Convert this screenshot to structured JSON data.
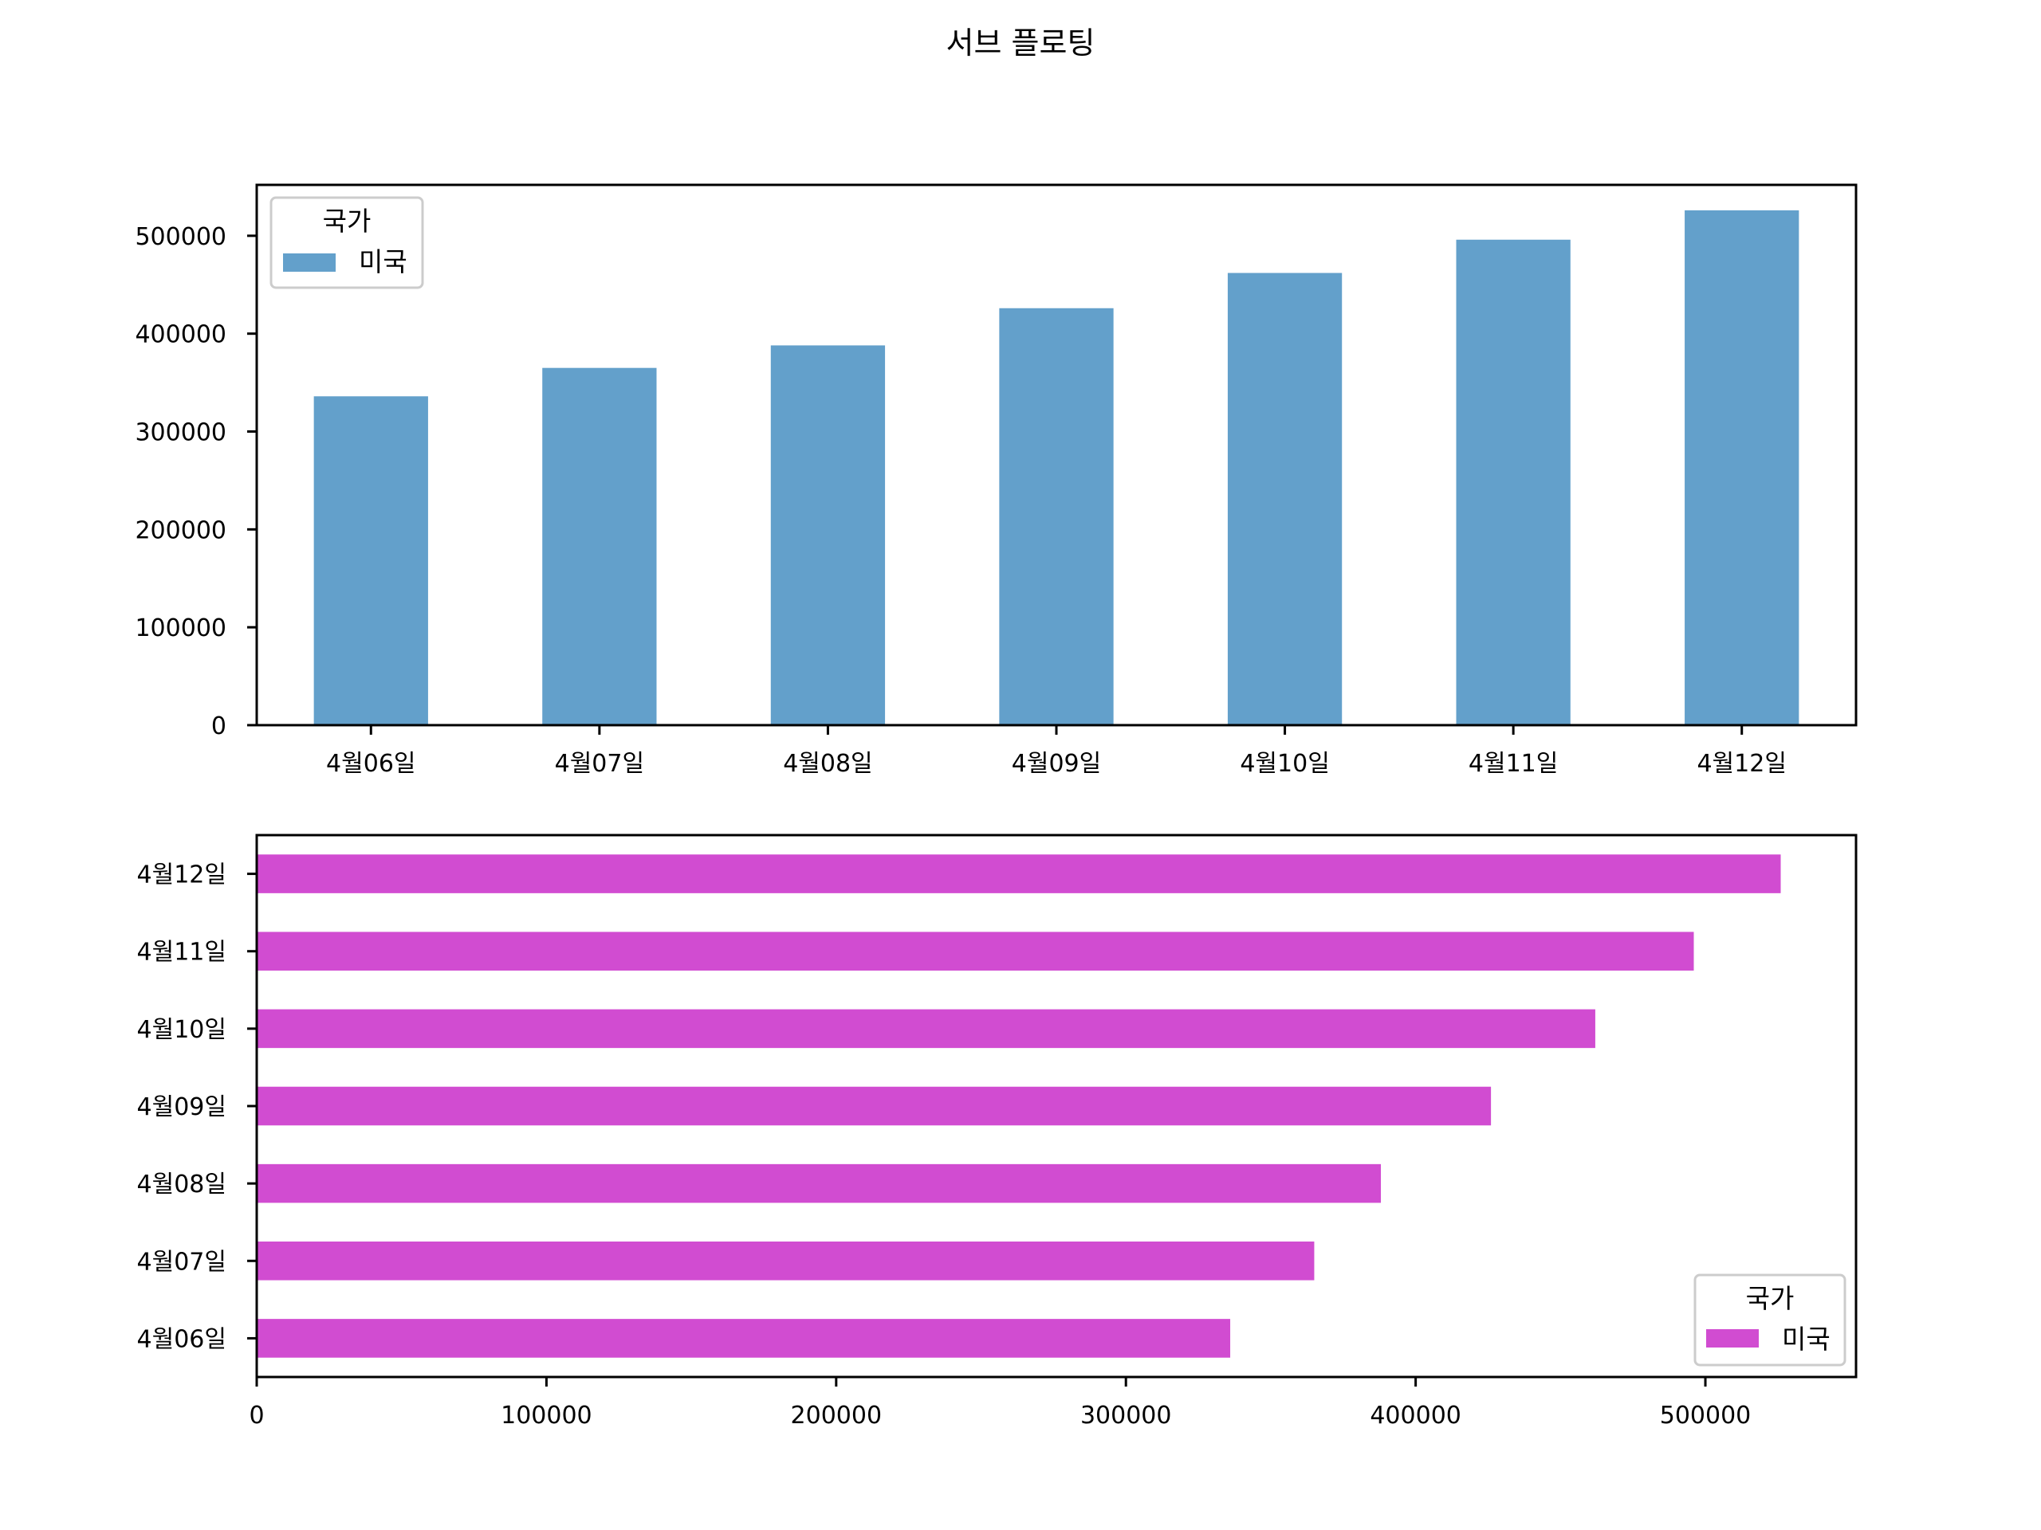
{
  "figure": {
    "suptitle": "서브 플로팅"
  },
  "colors": {
    "bar_series": "#63a0cb",
    "barh_series": "#d14cd1",
    "axis": "#000000",
    "legend_border": "#cccccc"
  },
  "chart_data": [
    {
      "type": "bar",
      "orientation": "vertical",
      "categories": [
        "4월06일",
        "4월07일",
        "4월08일",
        "4월09일",
        "4월10일",
        "4월11일",
        "4월12일"
      ],
      "series": [
        {
          "name": "미국",
          "values": [
            336000,
            365000,
            388000,
            426000,
            462000,
            496000,
            526000
          ]
        }
      ],
      "ylim": [
        0,
        552000
      ],
      "yticks": [
        0,
        100000,
        200000,
        300000,
        400000,
        500000
      ],
      "ytick_labels": [
        "0",
        "100000",
        "200000",
        "300000",
        "400000",
        "500000"
      ],
      "legend": {
        "title": "국가",
        "entries": [
          "미국"
        ],
        "position": "upper left"
      },
      "grid": false
    },
    {
      "type": "bar",
      "orientation": "horizontal",
      "categories": [
        "4월06일",
        "4월07일",
        "4월08일",
        "4월09일",
        "4월10일",
        "4월11일",
        "4월12일"
      ],
      "series": [
        {
          "name": "미국",
          "values": [
            336000,
            365000,
            388000,
            426000,
            462000,
            496000,
            526000
          ]
        }
      ],
      "xlim": [
        0,
        552000
      ],
      "xticks": [
        0,
        100000,
        200000,
        300000,
        400000,
        500000
      ],
      "xtick_labels": [
        "0",
        "100000",
        "200000",
        "300000",
        "400000",
        "500000"
      ],
      "legend": {
        "title": "국가",
        "entries": [
          "미국"
        ],
        "position": "lower right"
      },
      "grid": false
    }
  ]
}
